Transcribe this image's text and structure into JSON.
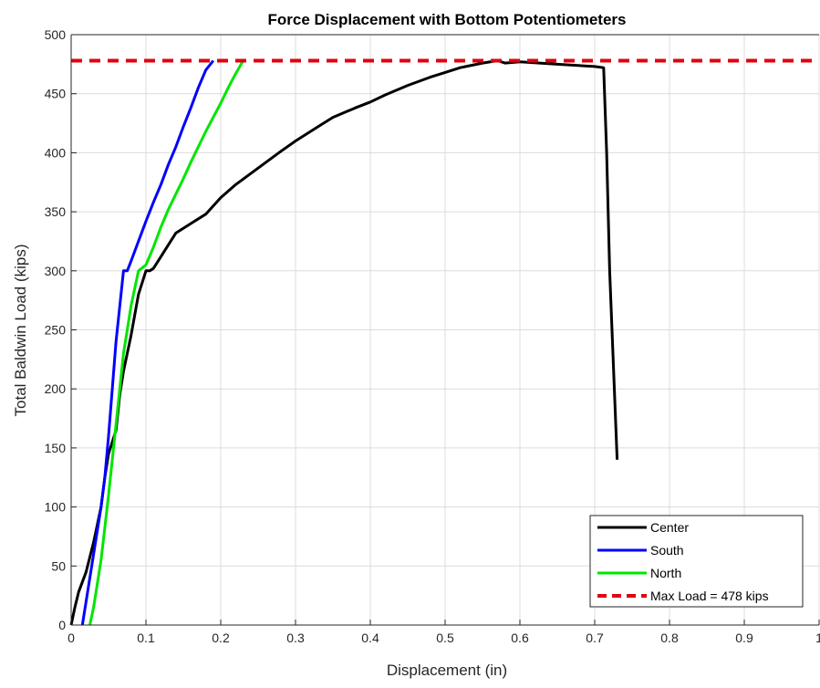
{
  "chart_data": {
    "type": "line",
    "title": "Force Displacement with Bottom Potentiometers",
    "xlabel": "Displacement (in)",
    "ylabel": "Total Baldwin Load (kips)",
    "xlim": [
      0,
      1
    ],
    "ylim": [
      0,
      500
    ],
    "xticks": [
      "0",
      "0.1",
      "0.2",
      "0.3",
      "0.4",
      "0.5",
      "0.6",
      "0.7",
      "0.8",
      "0.9",
      "1"
    ],
    "yticks": [
      "0",
      "50",
      "100",
      "150",
      "200",
      "250",
      "300",
      "350",
      "400",
      "450",
      "500"
    ],
    "grid": true,
    "legend_position": "bottom-right",
    "series": [
      {
        "name": "Center",
        "color": "#000000",
        "points": [
          [
            0.0,
            0
          ],
          [
            0.005,
            15
          ],
          [
            0.01,
            28
          ],
          [
            0.02,
            45
          ],
          [
            0.03,
            70
          ],
          [
            0.04,
            100
          ],
          [
            0.045,
            125
          ],
          [
            0.05,
            145
          ],
          [
            0.055,
            155
          ],
          [
            0.06,
            165
          ],
          [
            0.065,
            195
          ],
          [
            0.07,
            215
          ],
          [
            0.08,
            245
          ],
          [
            0.09,
            280
          ],
          [
            0.1,
            300
          ],
          [
            0.105,
            300
          ],
          [
            0.11,
            302
          ],
          [
            0.12,
            312
          ],
          [
            0.13,
            322
          ],
          [
            0.14,
            332
          ],
          [
            0.16,
            340
          ],
          [
            0.18,
            348
          ],
          [
            0.2,
            362
          ],
          [
            0.22,
            373
          ],
          [
            0.25,
            387
          ],
          [
            0.28,
            401
          ],
          [
            0.3,
            410
          ],
          [
            0.33,
            422
          ],
          [
            0.35,
            430
          ],
          [
            0.38,
            438
          ],
          [
            0.4,
            443
          ],
          [
            0.42,
            449
          ],
          [
            0.45,
            457
          ],
          [
            0.48,
            464
          ],
          [
            0.5,
            468
          ],
          [
            0.52,
            472
          ],
          [
            0.55,
            476
          ],
          [
            0.57,
            478
          ],
          [
            0.58,
            476
          ],
          [
            0.6,
            477
          ],
          [
            0.65,
            475
          ],
          [
            0.7,
            473
          ],
          [
            0.712,
            472
          ],
          [
            0.716,
            400
          ],
          [
            0.72,
            300
          ],
          [
            0.725,
            220
          ],
          [
            0.73,
            140
          ]
        ]
      },
      {
        "name": "South",
        "color": "#0000ff",
        "points": [
          [
            0.015,
            0
          ],
          [
            0.02,
            20
          ],
          [
            0.03,
            60
          ],
          [
            0.04,
            100
          ],
          [
            0.045,
            125
          ],
          [
            0.05,
            160
          ],
          [
            0.055,
            200
          ],
          [
            0.06,
            240
          ],
          [
            0.065,
            270
          ],
          [
            0.07,
            300
          ],
          [
            0.075,
            300
          ],
          [
            0.08,
            308
          ],
          [
            0.09,
            325
          ],
          [
            0.1,
            342
          ],
          [
            0.11,
            358
          ],
          [
            0.12,
            373
          ],
          [
            0.13,
            390
          ],
          [
            0.14,
            405
          ],
          [
            0.15,
            422
          ],
          [
            0.16,
            438
          ],
          [
            0.17,
            455
          ],
          [
            0.18,
            470
          ],
          [
            0.19,
            478
          ]
        ]
      },
      {
        "name": "North",
        "color": "#00e600",
        "points": [
          [
            0.025,
            0
          ],
          [
            0.03,
            15
          ],
          [
            0.04,
            55
          ],
          [
            0.05,
            110
          ],
          [
            0.06,
            170
          ],
          [
            0.07,
            230
          ],
          [
            0.08,
            270
          ],
          [
            0.09,
            300
          ],
          [
            0.1,
            305
          ],
          [
            0.11,
            320
          ],
          [
            0.12,
            337
          ],
          [
            0.13,
            352
          ],
          [
            0.14,
            365
          ],
          [
            0.15,
            378
          ],
          [
            0.16,
            392
          ],
          [
            0.17,
            405
          ],
          [
            0.18,
            418
          ],
          [
            0.19,
            430
          ],
          [
            0.2,
            442
          ],
          [
            0.21,
            455
          ],
          [
            0.22,
            467
          ],
          [
            0.23,
            478
          ]
        ]
      },
      {
        "name": "Max Load = 478 kips",
        "color": "#e00010",
        "dashed": true,
        "y_constant": 478,
        "points": [
          [
            0,
            478
          ],
          [
            1,
            478
          ]
        ]
      }
    ]
  }
}
